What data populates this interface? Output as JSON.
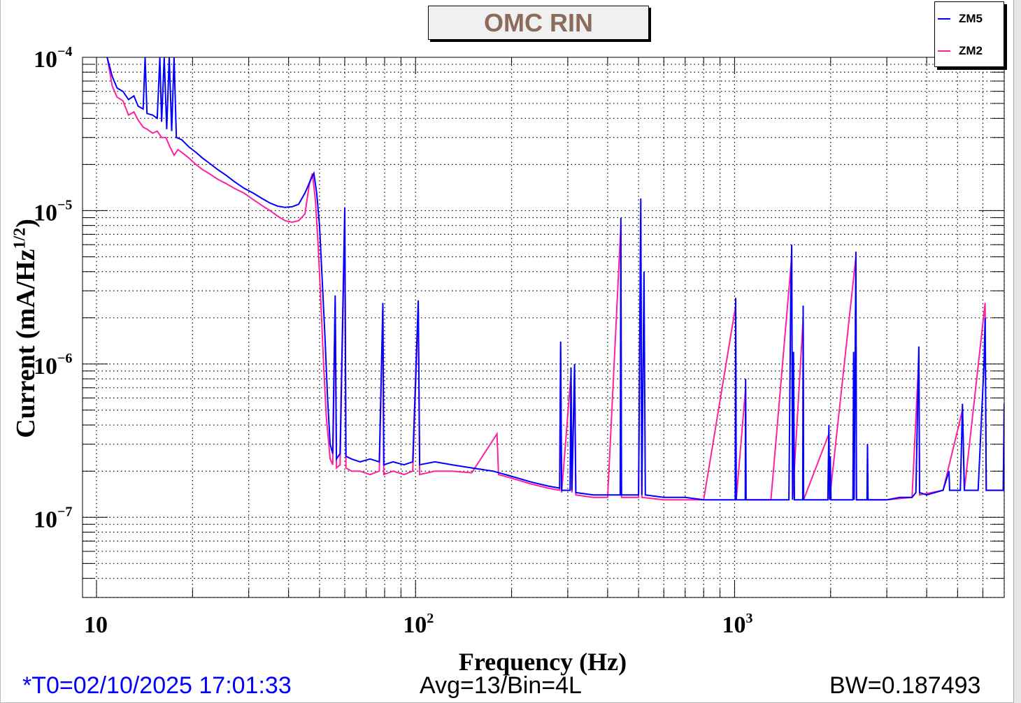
{
  "chart_data": {
    "type": "line",
    "title": "OMC RIN",
    "xlabel": "Frequency (Hz)",
    "ylabel": "Current (mA/Hz^1/2)",
    "xscale": "log",
    "yscale": "log",
    "xlim": [
      9.04,
      7000
    ],
    "ylim": [
      3e-08,
      0.0001
    ],
    "grid": true,
    "legend_position": "top-right",
    "x_tick_labels": [
      {
        "value": 10,
        "base": "10",
        "exp": ""
      },
      {
        "value": 100,
        "base": "10",
        "exp": "2"
      },
      {
        "value": 1000,
        "base": "10",
        "exp": "3"
      }
    ],
    "y_tick_labels": [
      {
        "value": 0.0001,
        "base": "10",
        "exp": "−4"
      },
      {
        "value": 1e-05,
        "base": "10",
        "exp": "−5"
      },
      {
        "value": 1e-06,
        "base": "10",
        "exp": "−6"
      },
      {
        "value": 1e-07,
        "base": "10",
        "exp": "−7"
      }
    ],
    "series": [
      {
        "name": "ZM5",
        "color": "#0000ff",
        "points": [
          [
            10.8,
            0.0001
          ],
          [
            11.2,
            7.5e-05
          ],
          [
            11.6,
            6.3e-05
          ],
          [
            12.1,
            6e-05
          ],
          [
            12.6,
            5.3e-05
          ],
          [
            13.1,
            5.6e-05
          ],
          [
            13.5,
            4.8e-05
          ],
          [
            14.0,
            4.6e-05
          ],
          [
            14.2,
            0.0001
          ],
          [
            14.4,
            4.3e-05
          ],
          [
            15.0,
            4.2e-05
          ],
          [
            15.5,
            4e-05
          ],
          [
            15.8,
            0.0001
          ],
          [
            16.0,
            3.8e-05
          ],
          [
            16.3,
            0.0001
          ],
          [
            16.6,
            3.4e-05
          ],
          [
            16.9,
            0.0001
          ],
          [
            17.2,
            3.3e-05
          ],
          [
            17.5,
            0.0001
          ],
          [
            17.8,
            3e-05
          ],
          [
            18.5,
            2.9e-05
          ],
          [
            19.5,
            2.6e-05
          ],
          [
            20.5,
            2.4e-05
          ],
          [
            21.5,
            2.2e-05
          ],
          [
            22.5,
            2.05e-05
          ],
          [
            24,
            1.85e-05
          ],
          [
            25.5,
            1.7e-05
          ],
          [
            27,
            1.55e-05
          ],
          [
            29,
            1.4e-05
          ],
          [
            31,
            1.3e-05
          ],
          [
            33,
            1.2e-05
          ],
          [
            35,
            1.12e-05
          ],
          [
            37,
            1.07e-05
          ],
          [
            39,
            1.05e-05
          ],
          [
            41,
            1.06e-05
          ],
          [
            43,
            1.1e-05
          ],
          [
            45,
            1.3e-05
          ],
          [
            47,
            1.6e-05
          ],
          [
            48,
            1.75e-05
          ],
          [
            49,
            1.3e-05
          ],
          [
            50,
            8e-06
          ],
          [
            51,
            3.5e-06
          ],
          [
            52,
            1.5e-06
          ],
          [
            53,
            6e-07
          ],
          [
            54,
            3e-07
          ],
          [
            55,
            2.6e-07
          ],
          [
            56,
            2.8e-06
          ],
          [
            56.5,
            2.4e-07
          ],
          [
            58,
            2.6e-07
          ],
          [
            60,
            1.05e-05
          ],
          [
            60.5,
            2.5e-07
          ],
          [
            63,
            2.4e-07
          ],
          [
            67,
            2.3e-07
          ],
          [
            72,
            2.4e-07
          ],
          [
            77,
            2.3e-07
          ],
          [
            79,
            2.5e-06
          ],
          [
            79.5,
            2.2e-07
          ],
          [
            85,
            2.3e-07
          ],
          [
            92,
            2.2e-07
          ],
          [
            98,
            2.3e-07
          ],
          [
            102,
            2.6e-06
          ],
          [
            103,
            2.2e-07
          ],
          [
            115,
            2.3e-07
          ],
          [
            130,
            2.2e-07
          ],
          [
            150,
            2.1e-07
          ],
          [
            175,
            2e-07
          ],
          [
            200,
            1.85e-07
          ],
          [
            230,
            1.7e-07
          ],
          [
            260,
            1.6e-07
          ],
          [
            283,
            1.55e-07
          ],
          [
            285,
            1.4e-06
          ],
          [
            287,
            1.5e-07
          ],
          [
            305,
            1.5e-07
          ],
          [
            307,
            9.5e-07
          ],
          [
            309,
            1.5e-07
          ],
          [
            315,
            1e-06
          ],
          [
            318,
            1.45e-07
          ],
          [
            360,
            1.4e-07
          ],
          [
            400,
            1.4e-07
          ],
          [
            438,
            1.4e-07
          ],
          [
            440,
            9e-06
          ],
          [
            442,
            1.4e-07
          ],
          [
            500,
            1.4e-07
          ],
          [
            508,
            1.2e-05
          ],
          [
            512,
            1.4e-07
          ],
          [
            520,
            4e-06
          ],
          [
            525,
            1.4e-07
          ],
          [
            600,
            1.35e-07
          ],
          [
            700,
            1.35e-07
          ],
          [
            800,
            1.3e-07
          ],
          [
            900,
            1.3e-07
          ],
          [
            1005,
            1.3e-07
          ],
          [
            1008,
            2.7e-06
          ],
          [
            1012,
            1.3e-07
          ],
          [
            1080,
            1.3e-07
          ],
          [
            1083,
            8e-07
          ],
          [
            1086,
            1.3e-07
          ],
          [
            1200,
            1.3e-07
          ],
          [
            1300,
            1.3e-07
          ],
          [
            1480,
            1.3e-07
          ],
          [
            1500,
            3e-06
          ],
          [
            1510,
            6e-06
          ],
          [
            1520,
            1.3e-07
          ],
          [
            1530,
            1.2e-06
          ],
          [
            1540,
            1.3e-07
          ],
          [
            1635,
            1.3e-07
          ],
          [
            1640,
            2.4e-06
          ],
          [
            1645,
            1.3e-07
          ],
          [
            1960,
            1.3e-07
          ],
          [
            1975,
            4e-07
          ],
          [
            1985,
            1.3e-07
          ],
          [
            1995,
            2.5e-07
          ],
          [
            2005,
            1.3e-07
          ],
          [
            2350,
            1.3e-07
          ],
          [
            2360,
            1.2e-06
          ],
          [
            2370,
            1.3e-07
          ],
          [
            2400,
            5.4e-06
          ],
          [
            2410,
            1.3e-07
          ],
          [
            2600,
            1.3e-07
          ],
          [
            2610,
            3e-07
          ],
          [
            2620,
            1.3e-07
          ],
          [
            3000,
            1.3e-07
          ],
          [
            3300,
            1.35e-07
          ],
          [
            3600,
            1.35e-07
          ],
          [
            3700,
            1.45e-07
          ],
          [
            3780,
            1.3e-06
          ],
          [
            3800,
            1.45e-07
          ],
          [
            4000,
            1.4e-07
          ],
          [
            4500,
            1.5e-07
          ],
          [
            4700,
            2e-07
          ],
          [
            4720,
            1.5e-07
          ],
          [
            5100,
            1.5e-07
          ],
          [
            5180,
            5.5e-07
          ],
          [
            5250,
            1.5e-07
          ],
          [
            5800,
            1.5e-07
          ],
          [
            6050,
            1e-06
          ],
          [
            6100,
            2e-06
          ],
          [
            6150,
            1.5e-07
          ],
          [
            6500,
            1.5e-07
          ],
          [
            6950,
            1.5e-07
          ],
          [
            7000,
            5.5e-07
          ]
        ]
      },
      {
        "name": "ZM2",
        "color": "#ff1fa0",
        "points": [
          [
            10.8,
            0.0001
          ],
          [
            11.2,
            6.5e-05
          ],
          [
            11.6,
            5.5e-05
          ],
          [
            12.1,
            5.2e-05
          ],
          [
            12.6,
            4.2e-05
          ],
          [
            13.1,
            4.4e-05
          ],
          [
            13.5,
            3.9e-05
          ],
          [
            14.0,
            3.5e-05
          ],
          [
            14.4,
            3.4e-05
          ],
          [
            15.0,
            3.2e-05
          ],
          [
            15.5,
            3.3e-05
          ],
          [
            16.0,
            3e-05
          ],
          [
            16.5,
            3e-05
          ],
          [
            17.0,
            2.6e-05
          ],
          [
            17.5,
            2.3e-05
          ],
          [
            18.0,
            2.5e-05
          ],
          [
            18.5,
            2.4e-05
          ],
          [
            19.5,
            2.2e-05
          ],
          [
            20.5,
            2e-05
          ],
          [
            21.5,
            1.85e-05
          ],
          [
            22.5,
            1.75e-05
          ],
          [
            24,
            1.6e-05
          ],
          [
            25.5,
            1.5e-05
          ],
          [
            27,
            1.4e-05
          ],
          [
            29,
            1.3e-05
          ],
          [
            31,
            1.18e-05
          ],
          [
            33,
            1.08e-05
          ],
          [
            35,
            1e-05
          ],
          [
            37,
            9.2e-06
          ],
          [
            39,
            8.6e-06
          ],
          [
            41,
            8.4e-06
          ],
          [
            43,
            8.6e-06
          ],
          [
            45,
            9.5e-06
          ],
          [
            46.5,
            1.5e-05
          ],
          [
            47.5,
            1.75e-05
          ],
          [
            48.5,
            1.2e-05
          ],
          [
            49.5,
            6e-06
          ],
          [
            50.5,
            2.5e-06
          ],
          [
            51.5,
            1e-06
          ],
          [
            52.5,
            4.5e-07
          ],
          [
            54,
            2.4e-07
          ],
          [
            55,
            2.2e-07
          ],
          [
            56,
            2.5e-06
          ],
          [
            56.5,
            2.1e-07
          ],
          [
            58,
            2.2e-07
          ],
          [
            60,
            9e-06
          ],
          [
            60.5,
            2.1e-07
          ],
          [
            63,
            2e-07
          ],
          [
            67,
            2e-07
          ],
          [
            72,
            1.9e-07
          ],
          [
            77,
            2e-07
          ],
          [
            79,
            2.3e-06
          ],
          [
            79.5,
            1.9e-07
          ],
          [
            85,
            2e-07
          ],
          [
            92,
            1.9e-07
          ],
          [
            98,
            2e-07
          ],
          [
            102,
            2.3e-06
          ],
          [
            103,
            1.9e-07
          ],
          [
            115,
            2e-07
          ],
          [
            130,
            2e-07
          ],
          [
            150,
            1.95e-07
          ],
          [
            180,
            3.5e-07
          ],
          [
            182,
            1.9e-07
          ],
          [
            200,
            1.8e-07
          ],
          [
            230,
            1.65e-07
          ],
          [
            260,
            1.55e-07
          ],
          [
            283,
            1.5e-07
          ],
          [
            285,
            1.2e-06
          ],
          [
            287,
            1.45e-07
          ],
          [
            307,
            8.5e-07
          ],
          [
            309,
            1.45e-07
          ],
          [
            315,
            9e-07
          ],
          [
            318,
            1.4e-07
          ],
          [
            360,
            1.35e-07
          ],
          [
            400,
            1.35e-07
          ],
          [
            440,
            8e-06
          ],
          [
            442,
            1.35e-07
          ],
          [
            500,
            1.35e-07
          ],
          [
            508,
            9e-06
          ],
          [
            512,
            1.35e-07
          ],
          [
            600,
            1.3e-07
          ],
          [
            800,
            1.3e-07
          ],
          [
            1008,
            2.4e-06
          ],
          [
            1012,
            1.3e-07
          ],
          [
            1083,
            7e-07
          ],
          [
            1086,
            1.3e-07
          ],
          [
            1300,
            1.3e-07
          ],
          [
            1510,
            5e-06
          ],
          [
            1520,
            1.3e-07
          ],
          [
            1640,
            2e-06
          ],
          [
            1645,
            1.3e-07
          ],
          [
            1975,
            3.5e-07
          ],
          [
            1985,
            1.3e-07
          ],
          [
            2400,
            5e-06
          ],
          [
            2410,
            1.3e-07
          ],
          [
            3000,
            1.3e-07
          ],
          [
            3600,
            1.35e-07
          ],
          [
            3780,
            1.1e-06
          ],
          [
            3800,
            1.4e-07
          ],
          [
            4500,
            1.5e-07
          ],
          [
            5180,
            5e-07
          ],
          [
            5250,
            1.5e-07
          ],
          [
            6100,
            2.5e-06
          ],
          [
            6150,
            1.5e-07
          ],
          [
            6950,
            1.5e-07
          ],
          [
            7000,
            5e-07
          ]
        ]
      }
    ]
  },
  "footer": {
    "t0": "*T0=02/10/2025 17:01:33",
    "avg": "Avg=13/Bin=4L",
    "bw": "BW=0.187493"
  },
  "colors": {
    "t0_text": "#0000ff",
    "title_text": "#8b6b5c",
    "title_bg": "#f0f0f0"
  }
}
